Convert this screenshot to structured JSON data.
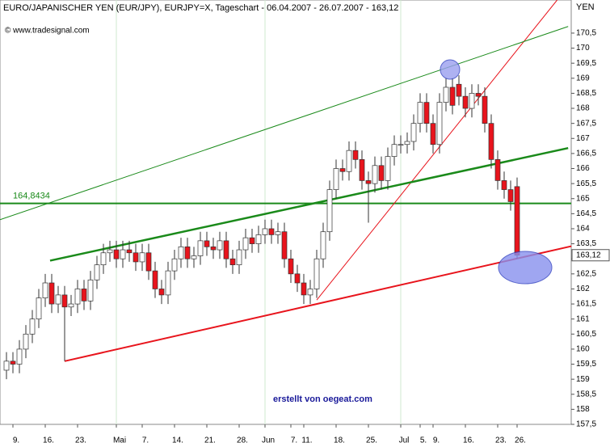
{
  "chart_data": {
    "type": "candlestick",
    "title": "EURO/JAPANISCHER YEN (EUR/JPY), EURJPY=X, Tageschart - 06.04.2007 - 26.07.2007 - 163,12",
    "source": "© www.tradesignal.com",
    "y_axis_label": "YEN",
    "annotation": "erstellt von oegeat.com",
    "categories": [
      null,
      "9.",
      null,
      null,
      null,
      null,
      "16.",
      null,
      null,
      null,
      null,
      "23.",
      null,
      null,
      null,
      null,
      null,
      "Mai",
      null,
      null,
      null,
      "7.",
      null,
      null,
      null,
      null,
      "14.",
      null,
      null,
      null,
      null,
      "21.",
      null,
      null,
      null,
      null,
      "28.",
      null,
      null,
      null,
      "Jun",
      null,
      null,
      null,
      "7.",
      null,
      "11.",
      null,
      null,
      null,
      null,
      "18.",
      null,
      null,
      null,
      null,
      "25.",
      null,
      null,
      null,
      null,
      "Jul",
      null,
      null,
      "5.",
      null,
      "9.",
      null,
      null,
      null,
      null,
      "16.",
      null,
      null,
      null,
      null,
      "23.",
      null,
      null,
      "26."
    ],
    "open": [
      159.3,
      159.6,
      159.5,
      160.0,
      160.5,
      161.0,
      161.7,
      162.2,
      161.5,
      161.8,
      161.4,
      161.5,
      162.0,
      161.6,
      162.3,
      162.8,
      163.2,
      163.3,
      163.0,
      163.3,
      163.2,
      162.9,
      163.2,
      162.6,
      162.0,
      161.8,
      162.6,
      163.0,
      163.4,
      163.0,
      163.1,
      163.6,
      163.4,
      163.3,
      163.6,
      163.0,
      162.8,
      163.3,
      163.7,
      163.5,
      163.8,
      164.0,
      163.8,
      163.9,
      163.0,
      162.5,
      162.2,
      161.8,
      162.0,
      163.0,
      163.9,
      165.3,
      166.0,
      165.9,
      166.6,
      166.3,
      165.6,
      165.5,
      166.1,
      165.6,
      166.4,
      166.8,
      166.8,
      166.9,
      167.5,
      168.2,
      167.5,
      166.8,
      168.2,
      168.7,
      168.8,
      168.4,
      168.0,
      168.5,
      168.4,
      167.5,
      166.3,
      165.6,
      165.3,
      165.4
    ],
    "high": [
      159.9,
      159.9,
      160.3,
      160.8,
      161.3,
      162.0,
      162.5,
      162.5,
      162.1,
      162.1,
      161.8,
      162.3,
      162.3,
      162.6,
      163.1,
      163.5,
      163.6,
      163.6,
      163.6,
      163.6,
      163.5,
      163.5,
      163.5,
      162.9,
      162.3,
      162.9,
      163.3,
      163.7,
      163.7,
      163.4,
      163.9,
      163.9,
      163.7,
      163.9,
      163.9,
      163.3,
      163.6,
      164.0,
      164.0,
      164.1,
      164.3,
      164.3,
      164.2,
      164.2,
      163.3,
      162.8,
      162.5,
      162.3,
      163.3,
      164.2,
      165.6,
      166.3,
      166.3,
      166.9,
      166.9,
      166.6,
      165.9,
      166.4,
      166.4,
      166.7,
      167.1,
      167.1,
      167.2,
      167.8,
      168.5,
      168.5,
      167.8,
      168.5,
      169.0,
      169.0,
      169.1,
      168.7,
      168.8,
      168.8,
      168.7,
      167.8,
      166.6,
      165.9,
      165.6,
      165.7
    ],
    "low": [
      159.0,
      159.2,
      159.2,
      159.7,
      160.2,
      160.7,
      161.4,
      161.2,
      161.2,
      159.6,
      161.1,
      161.2,
      161.3,
      161.3,
      162.0,
      162.5,
      162.9,
      162.7,
      162.7,
      162.9,
      162.6,
      162.6,
      162.3,
      161.7,
      161.5,
      161.5,
      162.3,
      162.7,
      162.7,
      162.7,
      162.8,
      163.1,
      163.0,
      163.0,
      162.7,
      162.5,
      162.5,
      163.0,
      163.2,
      163.2,
      163.5,
      163.5,
      163.5,
      162.7,
      162.2,
      161.9,
      161.5,
      161.5,
      161.7,
      162.7,
      163.6,
      165.0,
      165.6,
      165.6,
      166.0,
      165.3,
      164.2,
      165.2,
      165.3,
      165.3,
      166.1,
      166.5,
      166.5,
      166.6,
      167.2,
      167.2,
      166.5,
      166.5,
      167.9,
      167.8,
      168.1,
      167.7,
      167.7,
      168.1,
      167.2,
      166.0,
      165.3,
      165.0,
      164.6,
      163.0
    ],
    "close": [
      159.6,
      159.5,
      160.0,
      160.5,
      161.0,
      161.7,
      162.2,
      161.5,
      161.8,
      161.4,
      161.5,
      162.0,
      161.6,
      162.3,
      162.8,
      163.2,
      163.3,
      163.0,
      163.3,
      163.2,
      162.9,
      163.2,
      162.6,
      162.0,
      161.8,
      162.6,
      163.0,
      163.4,
      163.0,
      163.1,
      163.6,
      163.4,
      163.3,
      163.6,
      163.0,
      162.8,
      163.3,
      163.7,
      163.5,
      163.8,
      164.0,
      163.8,
      163.9,
      163.0,
      162.5,
      162.2,
      161.8,
      162.0,
      163.0,
      163.9,
      165.3,
      166.0,
      165.9,
      166.6,
      166.3,
      165.6,
      165.5,
      166.1,
      165.6,
      166.4,
      166.8,
      166.8,
      166.9,
      167.5,
      168.2,
      167.5,
      166.8,
      168.2,
      168.7,
      168.1,
      168.4,
      168.0,
      168.5,
      168.4,
      167.5,
      166.3,
      165.6,
      165.3,
      164.9,
      163.12
    ],
    "up_color": "#ffffff",
    "down_color": "#e8141c",
    "ylim": [
      157.5,
      171.6
    ],
    "yticks": [
      {
        "value": 157.5,
        "label": "157,5"
      },
      158,
      {
        "value": 158.5,
        "label": "158,5"
      },
      159,
      {
        "value": 159.5,
        "label": "159,5"
      },
      160,
      {
        "value": 160.5,
        "label": "160,5"
      },
      161,
      {
        "value": 161.5,
        "label": "161,5"
      },
      162,
      {
        "value": 162.5,
        "label": "162,5"
      },
      163,
      {
        "value": 163.5,
        "label": "163,5"
      },
      164,
      {
        "value": 164.5,
        "label": "164,5"
      },
      165,
      {
        "value": 165.5,
        "label": "165,5"
      },
      166,
      {
        "value": 166.5,
        "label": "166,5"
      },
      167,
      {
        "value": 167.5,
        "label": "167,5"
      },
      168,
      {
        "value": 168.5,
        "label": "168,5"
      },
      169,
      {
        "value": 169.5,
        "label": "169,5"
      },
      170,
      {
        "value": 170.5,
        "label": "170,5"
      }
    ],
    "hline": {
      "value": 164.8434,
      "label": "164,8434",
      "color": "#1a8a1a"
    },
    "last_price": {
      "value": 163.12,
      "label": "163,12"
    },
    "trendlines": [
      {
        "color": "#e8141c",
        "width": 2,
        "x": [
          9,
          87.4
        ],
        "y": [
          159.6,
          163.42
        ]
      },
      {
        "color": "#e8141c",
        "width": 1,
        "x": [
          48,
          85.2
        ],
        "y": [
          161.63,
          171.6
        ]
      },
      {
        "color": "#1a8a1a",
        "width": 2.5,
        "x": [
          6.75,
          86.9
        ],
        "y": [
          162.94,
          166.68
        ]
      },
      {
        "color": "#1a8a1a",
        "width": 1,
        "x": [
          -1,
          86.9
        ],
        "y": [
          164.3,
          170.72
        ]
      }
    ]
  }
}
